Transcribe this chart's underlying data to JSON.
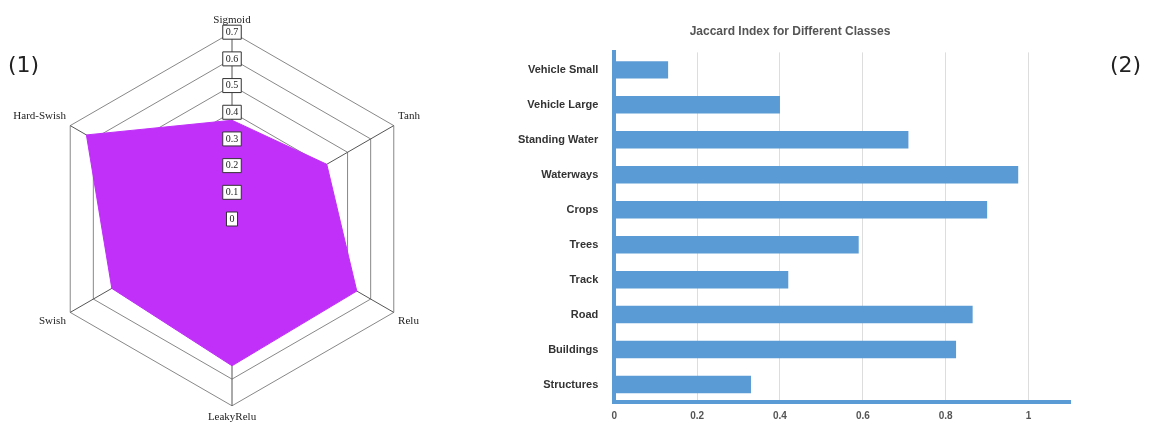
{
  "chart_data": [
    {
      "type": "radar",
      "categories": [
        "Sigmoid",
        "Tanh",
        "Relu",
        "LeakyRelu",
        "Swish",
        "Hard-Swish"
      ],
      "series": [
        {
          "color": "#c030f8",
          "values": [
            0.37,
            0.41,
            0.54,
            0.55,
            0.52,
            0.63
          ]
        }
      ],
      "ylim": [
        0,
        0.7
      ],
      "yticks": [
        0,
        0.1,
        0.2,
        0.3,
        0.4,
        0.5,
        0.6,
        0.7
      ],
      "legend": false,
      "annotations": [
        "(1)"
      ]
    },
    {
      "type": "bar",
      "orientation": "horizontal",
      "title": "Jaccard Index for Different Classes",
      "categories": [
        "Vehicle Small",
        "Vehicle Large",
        "Standing Water",
        "Waterways",
        "Crops",
        "Trees",
        "Track",
        "Road",
        "Buildings",
        "Structures"
      ],
      "values": [
        0.13,
        0.4,
        0.71,
        0.975,
        0.9,
        0.59,
        0.42,
        0.865,
        0.825,
        0.33
      ],
      "color": "#5b9bd5",
      "xlim": [
        0,
        1.1
      ],
      "xticks": [
        0,
        0.2,
        0.4,
        0.6,
        0.8,
        1
      ],
      "grid": "x",
      "legend": false,
      "annotations": [
        "(2)"
      ]
    }
  ]
}
